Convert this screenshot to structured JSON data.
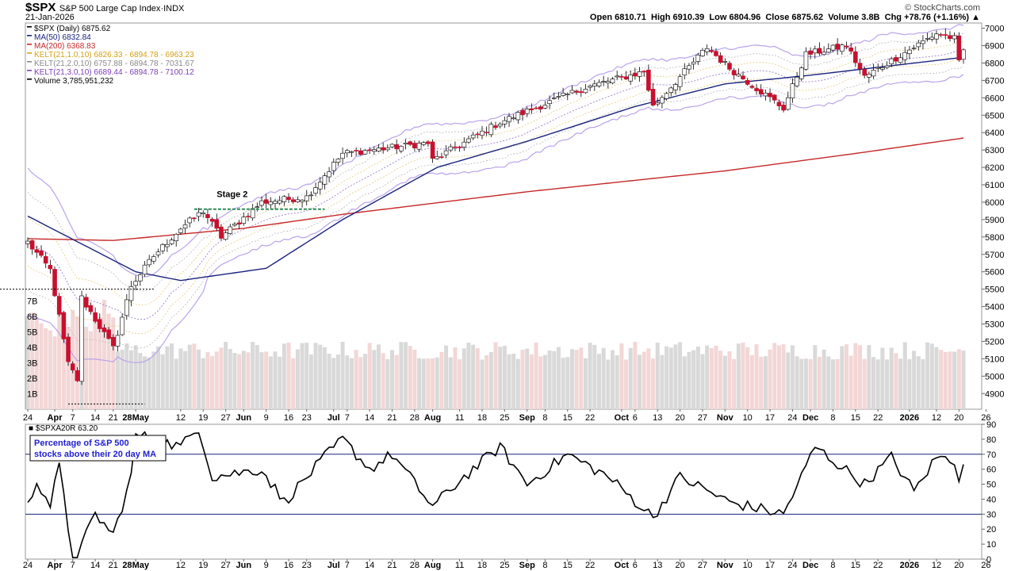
{
  "header": {
    "symbol": "$SPX",
    "name": "S&P 500 Large Cap Index",
    "exchange": "INDX",
    "date": "21-Jan-2026",
    "watermark": "© StockCharts.com",
    "stats": {
      "open_label": "Open",
      "open": "6810.71",
      "high_label": "High",
      "high": "6910.39",
      "low_label": "Low",
      "low": "6804.96",
      "close_label": "Close",
      "close": "6875.62",
      "volume_label": "Volume",
      "volume": "3.8B",
      "chg_label": "Chg",
      "chg": "+78.76 (+1.16%)"
    }
  },
  "legend": [
    {
      "text": "$SPX (Daily) 6875.62",
      "color": "#000000"
    },
    {
      "text": "MA(50) 6832.84",
      "color": "#1a237e"
    },
    {
      "text": "MA(200) 6368.83",
      "color": "#c62828"
    },
    {
      "text": "KELT(21,1.0,10) 6826.33 - 6894.78 - 6963.23",
      "color": "#d4a017"
    },
    {
      "text": "KELT(21,2.0,10) 6757.88 - 6894.78 - 7031.67",
      "color": "#888888"
    },
    {
      "text": "KELT(21,3.0,10) 6689.44 - 6894.78 - 7100.12",
      "color": "#7b3fb5"
    },
    {
      "text": "Volume 3,785,951,232",
      "color": "#000000"
    }
  ],
  "annotations": {
    "stage2": "Stage 2",
    "box_line1": "Percentage of S&P 500",
    "box_line2": "stocks above their 20 day MA",
    "lower_panel_label": "$SPXA20R 63.20"
  },
  "colors": {
    "up": "#ffffff",
    "down": "#c8102e",
    "ma50": "#1a237e",
    "ma200": "#c62828",
    "kelt3": "#b9a2ea",
    "kelt2": "#c0c0c0",
    "kelt1": "#e8d18a",
    "vol_up": "#d9d9d9",
    "vol_down": "#f3d6d6",
    "stage_line": "#2e8b57"
  },
  "chart_data": [
    {
      "type": "candlestick",
      "title": "$SPX (Daily)",
      "y_ticks": [
        4900,
        5000,
        5100,
        5200,
        5300,
        5400,
        5500,
        5600,
        5700,
        5800,
        5900,
        6000,
        6100,
        6200,
        6300,
        6400,
        6500,
        6600,
        6700,
        6800,
        6900,
        7000
      ],
      "ylim": [
        4810,
        7030
      ],
      "volume_ticks": [
        "1B",
        "2B",
        "3B",
        "4B",
        "5B",
        "6B",
        "7B"
      ],
      "x_ticks": [
        "24",
        "Apr",
        "7",
        "14",
        "21",
        "28May",
        "12",
        "19",
        "27",
        "Jun",
        "9",
        "16",
        "23",
        "Jul",
        "7",
        "14",
        "21",
        "28",
        "Aug",
        "11",
        "18",
        "25",
        "Sep",
        "8",
        "15",
        "22",
        "Oct",
        "6",
        "13",
        "20",
        "27",
        "Nov",
        "10",
        "17",
        "24",
        "Dec",
        "8",
        "15",
        "22",
        "2026",
        "12",
        "20",
        "26"
      ],
      "price_anchors": [
        {
          "date": "2025-03-24",
          "close": 5770
        },
        {
          "date": "2025-03-31",
          "close": 5610
        },
        {
          "date": "2025-04-04",
          "close": 5070
        },
        {
          "date": "2025-04-08",
          "close": 4980
        },
        {
          "date": "2025-04-09",
          "close": 5450
        },
        {
          "date": "2025-04-21",
          "close": 5160
        },
        {
          "date": "2025-04-25",
          "close": 5520
        },
        {
          "date": "2025-05-02",
          "close": 5690
        },
        {
          "date": "2025-05-12",
          "close": 5850
        },
        {
          "date": "2025-05-19",
          "close": 5950
        },
        {
          "date": "2025-05-23",
          "close": 5800
        },
        {
          "date": "2025-06-06",
          "close": 6000
        },
        {
          "date": "2025-06-23",
          "close": 6030
        },
        {
          "date": "2025-07-03",
          "close": 6280
        },
        {
          "date": "2025-07-31",
          "close": 6340
        },
        {
          "date": "2025-08-01",
          "close": 6240
        },
        {
          "date": "2025-08-22",
          "close": 6460
        },
        {
          "date": "2025-09-19",
          "close": 6660
        },
        {
          "date": "2025-10-08",
          "close": 6750
        },
        {
          "date": "2025-10-10",
          "close": 6550
        },
        {
          "date": "2025-10-28",
          "close": 6890
        },
        {
          "date": "2025-11-04",
          "close": 6770
        },
        {
          "date": "2025-11-20",
          "close": 6540
        },
        {
          "date": "2025-11-28",
          "close": 6850
        },
        {
          "date": "2025-12-11",
          "close": 6900
        },
        {
          "date": "2025-12-17",
          "close": 6720
        },
        {
          "date": "2026-01-12",
          "close": 6970
        },
        {
          "date": "2026-01-16",
          "close": 6940
        },
        {
          "date": "2026-01-20",
          "close": 6800
        },
        {
          "date": "2026-01-21",
          "close": 6875.62
        }
      ],
      "ma50_anchors": [
        {
          "date": "2025-03-24",
          "value": 5920
        },
        {
          "date": "2025-04-28",
          "value": 5600
        },
        {
          "date": "2025-05-12",
          "value": 5550
        },
        {
          "date": "2025-06-09",
          "value": 5620
        },
        {
          "date": "2025-07-03",
          "value": 5900
        },
        {
          "date": "2025-08-04",
          "value": 6200
        },
        {
          "date": "2025-09-02",
          "value": 6350
        },
        {
          "date": "2025-10-06",
          "value": 6550
        },
        {
          "date": "2025-11-03",
          "value": 6680
        },
        {
          "date": "2025-12-01",
          "value": 6730
        },
        {
          "date": "2026-01-21",
          "value": 6832.84
        }
      ],
      "ma200_anchors": [
        {
          "date": "2025-03-24",
          "value": 5790
        },
        {
          "date": "2025-04-21",
          "value": 5780
        },
        {
          "date": "2025-06-02",
          "value": 5850
        },
        {
          "date": "2025-07-03",
          "value": 5930
        },
        {
          "date": "2025-09-02",
          "value": 6060
        },
        {
          "date": "2025-11-03",
          "value": 6180
        },
        {
          "date": "2025-12-15",
          "value": 6280
        },
        {
          "date": "2026-01-21",
          "value": 6368.83
        }
      ],
      "stage2_level": 5960,
      "april_low_level": 4840,
      "march_ref_level": 5500
    },
    {
      "type": "line",
      "title": "$SPXA20R",
      "y_ticks": [
        0,
        10,
        20,
        30,
        40,
        50,
        60,
        70,
        80,
        90
      ],
      "ylim": [
        0,
        90
      ],
      "reference_lines": [
        70,
        30
      ],
      "last_value": 63.2,
      "anchors": [
        {
          "date": "2025-03-24",
          "value": 35
        },
        {
          "date": "2025-03-26",
          "value": 53
        },
        {
          "date": "2025-03-31",
          "value": 36
        },
        {
          "date": "2025-04-02",
          "value": 62
        },
        {
          "date": "2025-04-04",
          "value": 20
        },
        {
          "date": "2025-04-07",
          "value": 3
        },
        {
          "date": "2025-04-08",
          "value": 2
        },
        {
          "date": "2025-04-14",
          "value": 30
        },
        {
          "date": "2025-04-21",
          "value": 16
        },
        {
          "date": "2025-04-25",
          "value": 55
        },
        {
          "date": "2025-04-28",
          "value": 83
        },
        {
          "date": "2025-05-12",
          "value": 75
        },
        {
          "date": "2025-05-16",
          "value": 88
        },
        {
          "date": "2025-05-21",
          "value": 55
        },
        {
          "date": "2025-06-06",
          "value": 60
        },
        {
          "date": "2025-06-13",
          "value": 38
        },
        {
          "date": "2025-06-27",
          "value": 68
        },
        {
          "date": "2025-07-03",
          "value": 80
        },
        {
          "date": "2025-07-14",
          "value": 60
        },
        {
          "date": "2025-07-21",
          "value": 70
        },
        {
          "date": "2025-08-01",
          "value": 35
        },
        {
          "date": "2025-08-12",
          "value": 55
        },
        {
          "date": "2025-08-22",
          "value": 75
        },
        {
          "date": "2025-09-02",
          "value": 50
        },
        {
          "date": "2025-09-15",
          "value": 70
        },
        {
          "date": "2025-09-26",
          "value": 55
        },
        {
          "date": "2025-10-10",
          "value": 28
        },
        {
          "date": "2025-10-20",
          "value": 55
        },
        {
          "date": "2025-11-04",
          "value": 38
        },
        {
          "date": "2025-11-20",
          "value": 30
        },
        {
          "date": "2025-11-26",
          "value": 55
        },
        {
          "date": "2025-12-02",
          "value": 75
        },
        {
          "date": "2025-12-17",
          "value": 50
        },
        {
          "date": "2025-12-26",
          "value": 68
        },
        {
          "date": "2026-01-05",
          "value": 45
        },
        {
          "date": "2026-01-12",
          "value": 68
        },
        {
          "date": "2026-01-16",
          "value": 66
        },
        {
          "date": "2026-01-20",
          "value": 55
        },
        {
          "date": "2026-01-21",
          "value": 63.2
        }
      ]
    }
  ]
}
